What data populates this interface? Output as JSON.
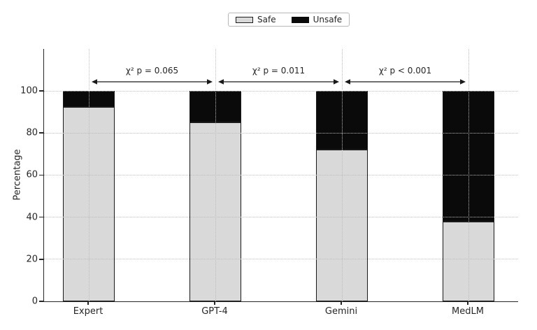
{
  "legend": {
    "items": [
      {
        "label": "Safe",
        "color": "#d9d9d9",
        "border": "#1a1a1a"
      },
      {
        "label": "Unsafe",
        "color": "#0a0a0a",
        "border": "#0a0a0a"
      }
    ]
  },
  "axes": {
    "ylabel": "Percentage"
  },
  "chart_data": {
    "type": "bar",
    "stacked": true,
    "title": "",
    "xlabel": "",
    "ylabel": "Percentage",
    "categories": [
      "Expert",
      "GPT-4",
      "Gemini",
      "MedLM"
    ],
    "series": [
      {
        "name": "Safe",
        "color": "#d9d9d9",
        "values": [
          92.5,
          85.0,
          72.0,
          38.0
        ]
      },
      {
        "name": "Unsafe",
        "color": "#0a0a0a",
        "values": [
          7.5,
          15.0,
          28.0,
          62.0
        ]
      }
    ],
    "ylim": [
      0,
      100
    ],
    "yticks": [
      0,
      20,
      40,
      60,
      80,
      100
    ],
    "grid": "dotted",
    "legend_position": "top-center",
    "annotations": [
      {
        "label": "χ² p = 0.065",
        "between": [
          "Expert",
          "GPT-4"
        ]
      },
      {
        "label": "χ² p = 0.011",
        "between": [
          "GPT-4",
          "Gemini"
        ]
      },
      {
        "label": "χ² p < 0.001",
        "between": [
          "Gemini",
          "MedLM"
        ]
      }
    ]
  }
}
